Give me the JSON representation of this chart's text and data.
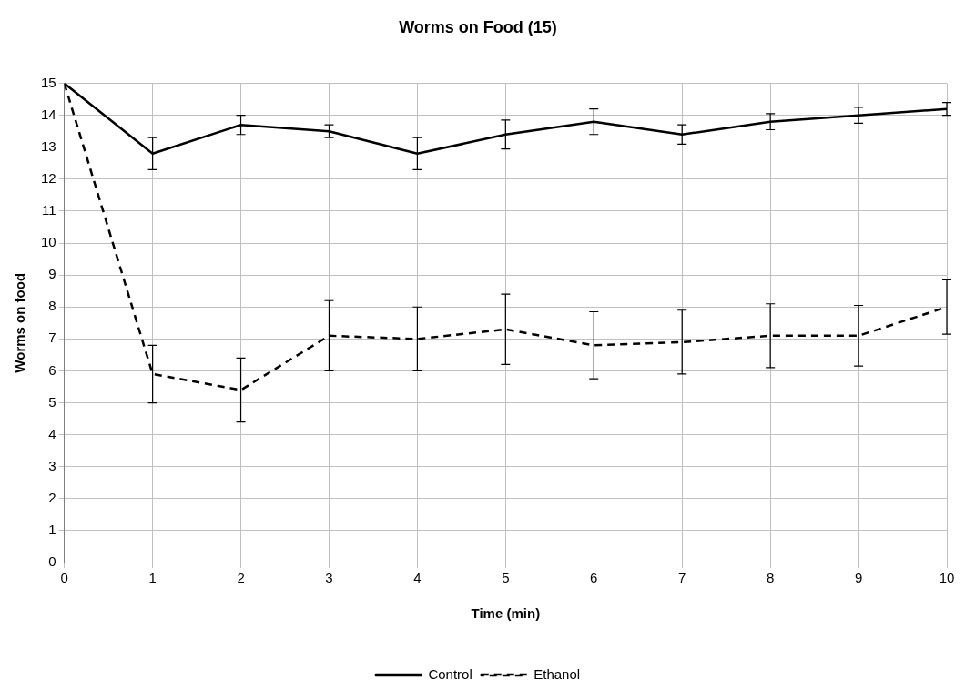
{
  "chart_data": {
    "type": "line",
    "title": "Worms on Food (15)",
    "xlabel": "Time (min)",
    "ylabel": "Worms on food",
    "x": [
      0,
      1,
      2,
      3,
      4,
      5,
      6,
      7,
      8,
      9,
      10
    ],
    "series": [
      {
        "name": "Control",
        "color": "#000000",
        "line_style": "solid",
        "values": [
          15,
          12.8,
          13.7,
          13.5,
          12.8,
          13.4,
          13.8,
          13.4,
          13.8,
          14.0,
          14.2
        ],
        "errors": [
          null,
          0.5,
          0.3,
          0.2,
          0.5,
          0.45,
          0.4,
          0.3,
          0.25,
          0.25,
          0.2
        ]
      },
      {
        "name": "Ethanol",
        "color": "#000000",
        "line_style": "dashed",
        "values": [
          15,
          5.9,
          5.4,
          7.1,
          7.0,
          7.3,
          6.8,
          6.9,
          7.1,
          7.1,
          8.0
        ],
        "errors": [
          null,
          0.9,
          1.0,
          1.1,
          1.0,
          1.1,
          1.05,
          1.0,
          1.0,
          0.95,
          0.85
        ]
      }
    ],
    "xlim": [
      0,
      10
    ],
    "xticks": [
      0,
      1,
      2,
      3,
      4,
      5,
      6,
      7,
      8,
      9,
      10
    ],
    "ylim": [
      0,
      15
    ],
    "yticks": [
      0,
      1,
      2,
      3,
      4,
      5,
      6,
      7,
      8,
      9,
      10,
      11,
      12,
      13,
      14,
      15
    ],
    "grid": true,
    "legend": "bottom",
    "marker": "none"
  }
}
